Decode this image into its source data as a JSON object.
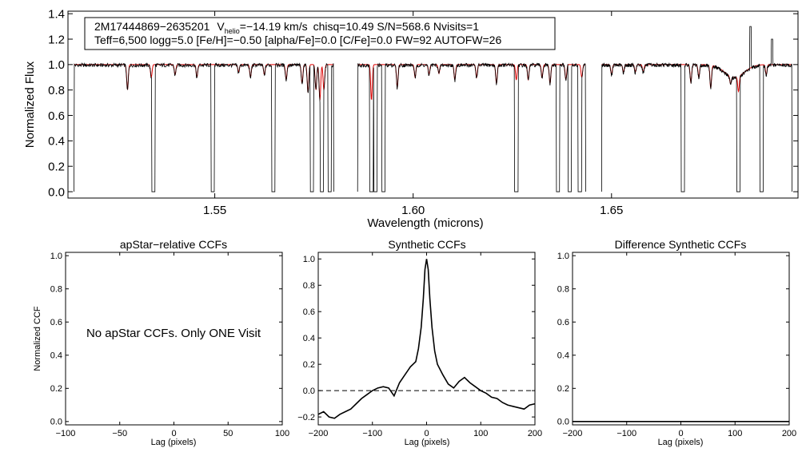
{
  "colors": {
    "observed": "#000000",
    "model": "#dd0000",
    "axis": "#000000",
    "background": "#ffffff"
  },
  "chart_data": [
    {
      "id": "spectrum",
      "type": "line",
      "title": "",
      "xlabel": "Wavelength (microns)",
      "ylabel": "Normalized Flux",
      "xlim": [
        1.513,
        1.697
      ],
      "ylim": [
        -0.05,
        1.42
      ],
      "xticks": [
        1.55,
        1.6,
        1.65
      ],
      "xtick_labels": [
        "1.55",
        "1.60",
        "1.65"
      ],
      "yticks": [
        0.0,
        0.2,
        0.4,
        0.6,
        0.8,
        1.0,
        1.2,
        1.4
      ],
      "ytick_labels": [
        "0.0",
        "0.2",
        "0.4",
        "0.6",
        "0.8",
        "1.0",
        "1.2",
        "1.4"
      ],
      "chips": [
        [
          1.5145,
          1.58
        ],
        [
          1.586,
          1.6435
        ],
        [
          1.6475,
          1.6955
        ]
      ],
      "dropouts": [
        1.5345,
        1.5495,
        1.5648,
        1.5745,
        1.577,
        1.579,
        1.5895,
        1.5905,
        1.5925,
        1.626,
        1.6365,
        1.6395,
        1.642,
        1.668,
        1.682,
        1.6878
      ],
      "model_lines": [
        {
          "w": 1.528,
          "d": 0.2
        },
        {
          "w": 1.534,
          "d": 0.1
        },
        {
          "w": 1.54,
          "d": 0.08
        },
        {
          "w": 1.5455,
          "d": 0.1
        },
        {
          "w": 1.556,
          "d": 0.06
        },
        {
          "w": 1.559,
          "d": 0.1
        },
        {
          "w": 1.5625,
          "d": 0.08
        },
        {
          "w": 1.568,
          "d": 0.12
        },
        {
          "w": 1.572,
          "d": 0.15
        },
        {
          "w": 1.5735,
          "d": 0.22
        },
        {
          "w": 1.5755,
          "d": 0.2
        },
        {
          "w": 1.5765,
          "d": 0.28
        },
        {
          "w": 1.5775,
          "d": 0.2
        },
        {
          "w": 1.5895,
          "d": 0.28
        },
        {
          "w": 1.596,
          "d": 0.18
        },
        {
          "w": 1.6005,
          "d": 0.1
        },
        {
          "w": 1.604,
          "d": 0.08
        },
        {
          "w": 1.6065,
          "d": 0.07
        },
        {
          "w": 1.6105,
          "d": 0.12
        },
        {
          "w": 1.616,
          "d": 0.1
        },
        {
          "w": 1.621,
          "d": 0.15
        },
        {
          "w": 1.626,
          "d": 0.12
        },
        {
          "w": 1.629,
          "d": 0.12
        },
        {
          "w": 1.6325,
          "d": 0.1
        },
        {
          "w": 1.6345,
          "d": 0.15
        },
        {
          "w": 1.6385,
          "d": 0.12
        },
        {
          "w": 1.6425,
          "d": 0.1
        },
        {
          "w": 1.65,
          "d": 0.08
        },
        {
          "w": 1.653,
          "d": 0.06
        },
        {
          "w": 1.656,
          "d": 0.06
        },
        {
          "w": 1.658,
          "d": 0.06
        },
        {
          "w": 1.67,
          "d": 0.14
        },
        {
          "w": 1.672,
          "d": 0.1
        },
        {
          "w": 1.675,
          "d": 0.18
        },
        {
          "w": 1.68,
          "d": 0.06
        },
        {
          "w": 1.682,
          "d": 0.12
        },
        {
          "w": 1.689,
          "d": 0.08
        }
      ],
      "balmer_lines": [
        {
          "w": 1.681,
          "d": 0.1,
          "wid": 0.0035
        }
      ],
      "spikes": [
        {
          "w": 1.685,
          "h": 1.3
        },
        {
          "w": 1.6905,
          "h": 1.2
        }
      ],
      "annotation": {
        "star": "2M17444869−2635201",
        "vhelio_label": "V",
        "vhelio_sub": "helio",
        "vhelio_value": "=−14.19 km/s",
        "stats": "chisq=10.49  S/N=568.6  Nvisits=1",
        "params": "Teff=6,500 logg=5.0 [Fe/H]=−0.50 [alpha/Fe]=0.0 [C/Fe]=0.0 FW=92 AUTOFW=26"
      }
    },
    {
      "id": "apstar_ccf",
      "type": "line",
      "title": "apStar−relative CCFs",
      "xlabel": "Lag (pixels)",
      "ylabel": "Normalized CCF",
      "xlim": [
        -100,
        100
      ],
      "ylim": [
        -0.02,
        1.02
      ],
      "xticks": [
        -100,
        -50,
        0,
        50,
        100
      ],
      "xtick_labels": [
        "−100",
        "−50",
        "0",
        "50",
        "100"
      ],
      "yticks": [
        0.0,
        0.2,
        0.4,
        0.6,
        0.8,
        1.0
      ],
      "ytick_labels": [
        "0.0",
        "0.2",
        "0.4",
        "0.6",
        "0.8",
        "1.0"
      ],
      "message": "No apStar CCFs.  Only ONE Visit"
    },
    {
      "id": "synthetic_ccf",
      "type": "line",
      "title": "Synthetic CCFs",
      "xlabel": "Lag (pixels)",
      "ylabel": "",
      "xlim": [
        -200,
        200
      ],
      "ylim": [
        -0.26,
        1.05
      ],
      "xticks": [
        -200,
        -100,
        0,
        100,
        200
      ],
      "xtick_labels": [
        "−200",
        "−100",
        "0",
        "100",
        "200"
      ],
      "yticks": [
        -0.2,
        0.0,
        0.2,
        0.4,
        0.6,
        0.8,
        1.0
      ],
      "ytick_labels": [
        "−0.2",
        "0.0",
        "0.2",
        "0.4",
        "0.6",
        "0.8",
        "1.0"
      ],
      "reference_line": 0.0,
      "x": [
        -200,
        -190,
        -180,
        -170,
        -160,
        -150,
        -140,
        -130,
        -120,
        -110,
        -100,
        -90,
        -80,
        -70,
        -60,
        -50,
        -40,
        -30,
        -20,
        -15,
        -10,
        -6,
        -3,
        0,
        3,
        6,
        10,
        15,
        20,
        30,
        40,
        50,
        60,
        70,
        80,
        90,
        100,
        110,
        120,
        130,
        140,
        150,
        160,
        170,
        180,
        190,
        200
      ],
      "y": [
        -0.18,
        -0.16,
        -0.2,
        -0.21,
        -0.18,
        -0.16,
        -0.14,
        -0.1,
        -0.06,
        -0.03,
        0.0,
        0.02,
        0.03,
        0.02,
        -0.04,
        0.06,
        0.12,
        0.18,
        0.22,
        0.32,
        0.48,
        0.7,
        0.92,
        1.0,
        0.92,
        0.7,
        0.48,
        0.3,
        0.2,
        0.12,
        0.05,
        0.02,
        0.07,
        0.1,
        0.06,
        0.03,
        0.0,
        -0.02,
        -0.05,
        -0.06,
        -0.09,
        -0.11,
        -0.12,
        -0.13,
        -0.14,
        -0.11,
        -0.1
      ]
    },
    {
      "id": "difference_ccf",
      "type": "line",
      "title": "Difference Synthetic CCFs",
      "xlabel": "Lag (pixels)",
      "ylabel": "",
      "xlim": [
        -200,
        200
      ],
      "ylim": [
        -0.02,
        1.02
      ],
      "xticks": [
        -200,
        -100,
        0,
        100,
        200
      ],
      "xtick_labels": [
        "−200",
        "−100",
        "0",
        "100",
        "200"
      ],
      "yticks": [
        0.0,
        0.2,
        0.4,
        0.6,
        0.8,
        1.0
      ],
      "ytick_labels": [
        "0.0",
        "0.2",
        "0.4",
        "0.6",
        "0.8",
        "1.0"
      ],
      "x": [
        -200,
        200
      ],
      "y": [
        0.0,
        0.0
      ]
    }
  ]
}
